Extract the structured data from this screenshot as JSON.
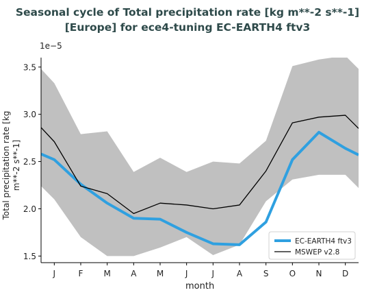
{
  "chart_data": {
    "type": "line",
    "title_line1": "Seasonal cycle of Total precipitation rate [kg m**-2 s**-1]",
    "title_line2": "[Europe] for ece4-tuning EC-EARTH4 ftv3",
    "ylabel_line1": "Total precipitation rate [kg",
    "ylabel_line2": "m**-2 s**-1]",
    "xlabel": "month",
    "offset_text": "1e−5",
    "categories": [
      "J",
      "F",
      "M",
      "A",
      "M",
      "J",
      "J",
      "A",
      "S",
      "O",
      "N",
      "D"
    ],
    "x_range": [
      0.5,
      12.5
    ],
    "ylim": [
      1.43,
      3.6
    ],
    "yticks": [
      1.5,
      2.0,
      2.5,
      3.0,
      3.5
    ],
    "ytick_labels": [
      "1.5",
      "2.0",
      "2.5",
      "3.0",
      "3.5"
    ],
    "grid": false,
    "legend_position": "lower-right",
    "band": {
      "upper": [
        3.48,
        3.33,
        2.79,
        2.82,
        2.39,
        2.54,
        2.39,
        2.5,
        2.48,
        2.72,
        3.51,
        3.58,
        3.62,
        3.48
      ],
      "lower": [
        2.24,
        2.1,
        1.7,
        1.5,
        1.5,
        1.59,
        1.7,
        1.51,
        1.62,
        2.08,
        2.31,
        2.36,
        2.36,
        2.22
      ],
      "x": [
        0.5,
        1,
        2,
        3,
        4,
        5,
        6,
        7,
        8,
        9,
        10,
        11,
        12,
        12.5
      ],
      "color": "#c0c0c0"
    },
    "series": [
      {
        "name": "EC-EARTH4 ftv3",
        "color": "#2fa0e0",
        "x": [
          0.5,
          1,
          2,
          3,
          4,
          5,
          6,
          7,
          8,
          9,
          10,
          11,
          12,
          12.5
        ],
        "values": [
          2.58,
          2.52,
          2.26,
          2.06,
          1.9,
          1.89,
          1.75,
          1.63,
          1.62,
          1.86,
          2.52,
          2.81,
          2.64,
          2.57
        ]
      },
      {
        "name": "MSWEP v2.8",
        "color": "#000000",
        "x": [
          0.5,
          1,
          2,
          3,
          4,
          5,
          6,
          7,
          8,
          9,
          10,
          11,
          12,
          12.5
        ],
        "values": [
          2.86,
          2.71,
          2.24,
          2.16,
          1.95,
          2.06,
          2.04,
          2.0,
          2.04,
          2.4,
          2.91,
          2.97,
          2.99,
          2.85
        ]
      }
    ]
  }
}
